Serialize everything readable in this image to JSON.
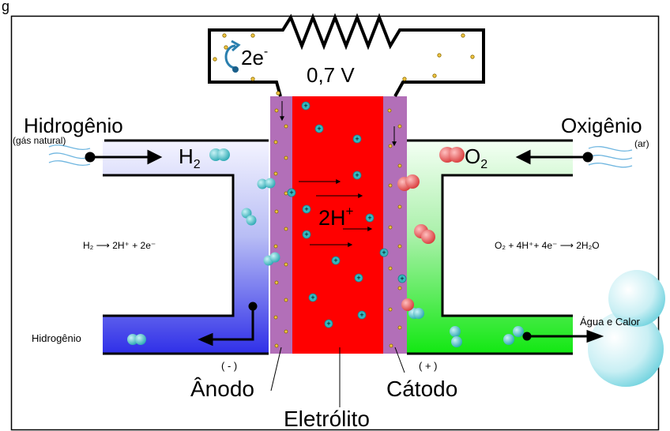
{
  "caption_fragment": "g",
  "labels": {
    "hydrogen_title": "Hidrogênio",
    "hydrogen_sub": "(gás natural)",
    "oxygen_title": "Oxigênio",
    "oxygen_sub": "(ar)",
    "h2": "H",
    "h2_sub": "2",
    "o2": "O",
    "o2_sub": "2",
    "electrons": "2e",
    "electrons_sup": "-",
    "voltage": "0,7 V",
    "protons": "2H",
    "protons_sup": "+",
    "anode": "Ânodo",
    "anode_sign": "( - )",
    "cathode": "Cátodo",
    "cathode_sign": "( + )",
    "electrolyte": "Eletrólito",
    "hydrogen_out": "Hidrogênio",
    "water_heat": "Água e Calor"
  },
  "equations": {
    "anode": "H₂ ⟶ 2H⁺ + 2e⁻",
    "cathode": "O₂ + 4H⁺+ 4e⁻ ⟶ 2H₂O"
  },
  "colors": {
    "electrolyte": "#ff0000",
    "electrode": "#b26fb8",
    "hydrogen_side": "#3333ee",
    "oxygen_side": "#11ee11",
    "hydrogen_molecule": "#36b7bf",
    "oxygen_molecule": "#e85050",
    "electron": "#f2c744"
  }
}
